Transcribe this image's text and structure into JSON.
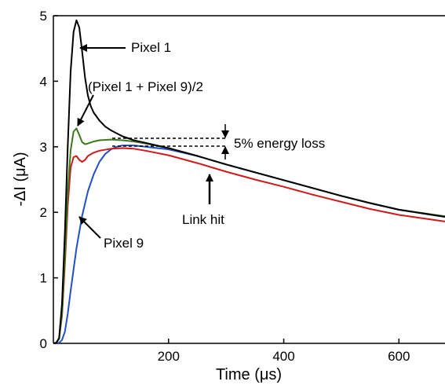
{
  "chart_data": {
    "type": "line",
    "title": "",
    "xlabel": "Time (μs)",
    "ylabel": "-ΔI (μA)",
    "xlim": [
      0,
      680
    ],
    "ylim": [
      0,
      5
    ],
    "x_ticks": [
      "200",
      "400",
      "600"
    ],
    "x_tick_values": [
      200,
      400,
      600
    ],
    "y_ticks": [
      "0",
      "1",
      "2",
      "3",
      "4",
      "5"
    ],
    "y_tick_values": [
      0,
      1,
      2,
      3,
      4,
      5
    ],
    "grid": false,
    "legend": "none",
    "annotations": {
      "pixel1": "Pixel 1",
      "average": "(Pixel 1 + Pixel 9)/2",
      "pixel9": "Pixel 9",
      "energy_loss": "5% energy loss",
      "link_hit": "Link hit"
    },
    "series": [
      {
        "name": "Pixel 1",
        "color": "#000000",
        "points": [
          [
            0,
            0
          ],
          [
            5,
            0.01
          ],
          [
            10,
            0.08
          ],
          [
            15,
            0.6
          ],
          [
            20,
            1.7
          ],
          [
            25,
            3.0
          ],
          [
            30,
            4.15
          ],
          [
            35,
            4.75
          ],
          [
            40,
            4.93
          ],
          [
            45,
            4.82
          ],
          [
            50,
            4.45
          ],
          [
            55,
            4.05
          ],
          [
            60,
            3.78
          ],
          [
            65,
            3.62
          ],
          [
            70,
            3.52
          ],
          [
            80,
            3.4
          ],
          [
            90,
            3.31
          ],
          [
            100,
            3.25
          ],
          [
            120,
            3.16
          ],
          [
            140,
            3.1
          ],
          [
            160,
            3.06
          ],
          [
            200,
            2.98
          ],
          [
            250,
            2.86
          ],
          [
            300,
            2.73
          ],
          [
            350,
            2.61
          ],
          [
            400,
            2.49
          ],
          [
            450,
            2.37
          ],
          [
            500,
            2.25
          ],
          [
            550,
            2.14
          ],
          [
            600,
            2.04
          ],
          [
            680,
            1.93
          ]
        ]
      },
      {
        "name": "(Pixel 1 + Pixel 9)/2",
        "color": "#3a7a1a",
        "points": [
          [
            0,
            0
          ],
          [
            5,
            0.01
          ],
          [
            10,
            0.07
          ],
          [
            15,
            0.45
          ],
          [
            20,
            1.3
          ],
          [
            25,
            2.3
          ],
          [
            30,
            2.95
          ],
          [
            35,
            3.23
          ],
          [
            40,
            3.28
          ],
          [
            45,
            3.18
          ],
          [
            50,
            3.07
          ],
          [
            55,
            3.04
          ],
          [
            60,
            3.05
          ],
          [
            70,
            3.08
          ],
          [
            80,
            3.1
          ],
          [
            100,
            3.11
          ],
          [
            120,
            3.1
          ],
          [
            140,
            3.08
          ],
          [
            160,
            3.05
          ],
          [
            200,
            2.98
          ],
          [
            250,
            2.86
          ],
          [
            300,
            2.73
          ],
          [
            350,
            2.61
          ],
          [
            400,
            2.49
          ],
          [
            450,
            2.37
          ],
          [
            500,
            2.25
          ],
          [
            550,
            2.14
          ],
          [
            600,
            2.04
          ],
          [
            680,
            1.94
          ]
        ]
      },
      {
        "name": "Pixel 9",
        "color": "#1f4fc9",
        "points": [
          [
            0,
            0
          ],
          [
            10,
            0.01
          ],
          [
            15,
            0.05
          ],
          [
            20,
            0.18
          ],
          [
            25,
            0.45
          ],
          [
            30,
            0.8
          ],
          [
            40,
            1.45
          ],
          [
            50,
            1.95
          ],
          [
            60,
            2.32
          ],
          [
            70,
            2.58
          ],
          [
            80,
            2.77
          ],
          [
            90,
            2.89
          ],
          [
            100,
            2.96
          ],
          [
            110,
            3.0
          ],
          [
            120,
            3.02
          ],
          [
            140,
            3.02
          ],
          [
            160,
            3.0
          ],
          [
            200,
            2.96
          ],
          [
            250,
            2.86
          ],
          [
            300,
            2.73
          ],
          [
            350,
            2.61
          ],
          [
            400,
            2.49
          ],
          [
            450,
            2.37
          ],
          [
            500,
            2.25
          ],
          [
            550,
            2.14
          ],
          [
            600,
            2.04
          ],
          [
            680,
            1.93
          ]
        ]
      },
      {
        "name": "Link hit",
        "color": "#d01a1a",
        "points": [
          [
            0,
            0
          ],
          [
            5,
            0.01
          ],
          [
            10,
            0.07
          ],
          [
            15,
            0.42
          ],
          [
            20,
            1.2
          ],
          [
            25,
            2.1
          ],
          [
            30,
            2.68
          ],
          [
            35,
            2.84
          ],
          [
            40,
            2.86
          ],
          [
            45,
            2.8
          ],
          [
            50,
            2.77
          ],
          [
            55,
            2.8
          ],
          [
            60,
            2.86
          ],
          [
            70,
            2.91
          ],
          [
            80,
            2.94
          ],
          [
            100,
            2.97
          ],
          [
            120,
            2.98
          ],
          [
            140,
            2.97
          ],
          [
            160,
            2.94
          ],
          [
            200,
            2.87
          ],
          [
            250,
            2.75
          ],
          [
            300,
            2.62
          ],
          [
            350,
            2.5
          ],
          [
            400,
            2.39
          ],
          [
            450,
            2.27
          ],
          [
            500,
            2.16
          ],
          [
            550,
            2.05
          ],
          [
            600,
            1.96
          ],
          [
            680,
            1.86
          ]
        ]
      }
    ]
  }
}
